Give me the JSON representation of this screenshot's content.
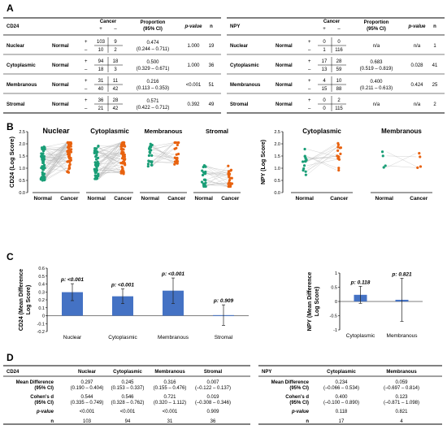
{
  "panel_letters": [
    "A",
    "B",
    "C",
    "D"
  ],
  "table_a": {
    "cd24": {
      "col_labels": {
        "marker": "CD24",
        "cancer": "Cancer",
        "plus": "+",
        "minus": "–",
        "proportion": "Proportion",
        "ci": "(95% CI)",
        "pvalue": "p-value",
        "n": "n"
      },
      "rows": [
        {
          "site": "Nuclear",
          "normal": "Normal",
          "p_a": "103",
          "p_b": "9",
          "m_a": "10",
          "m_b": "2",
          "prop": "0.474",
          "ci": "(0.244 – 0.711)",
          "pv": "1.000",
          "n": "19"
        },
        {
          "site": "Cytoplasmic",
          "normal": "Normal",
          "p_a": "94",
          "p_b": "18",
          "m_a": "18",
          "m_b": "3",
          "prop": "0.500",
          "ci": "(0.329 – 0.671)",
          "pv": "1.000",
          "n": "36"
        },
        {
          "site": "Membranous",
          "normal": "Normal",
          "p_a": "31",
          "p_b": "11",
          "m_a": "40",
          "m_b": "42",
          "prop": "0.216",
          "ci": "(0.113 – 0.353)",
          "pv": "<0.001",
          "n": "51"
        },
        {
          "site": "Stromal",
          "normal": "Normal",
          "p_a": "36",
          "p_b": "28",
          "m_a": "21",
          "m_b": "42",
          "prop": "0.571",
          "ci": "(0.422 – 0.712)",
          "pv": "0.392",
          "n": "49"
        }
      ]
    },
    "npy": {
      "col_labels": {
        "marker": "NPY",
        "cancer": "Cancer",
        "plus": "+",
        "minus": "–",
        "proportion": "Proportion",
        "ci": "(95% CI)",
        "pvalue": "p-value",
        "n": "n"
      },
      "rows": [
        {
          "site": "Nuclear",
          "normal": "Normal",
          "p_a": "0",
          "p_b": "0",
          "m_a": "1",
          "m_b": "116",
          "prop": "n/a",
          "ci": "",
          "pv": "n/a",
          "n": "1"
        },
        {
          "site": "Cytoplasmic",
          "normal": "Normal",
          "p_a": "17",
          "p_b": "28",
          "m_a": "13",
          "m_b": "59",
          "prop": "0.683",
          "ci": "(0.519 – 0.819)",
          "pv": "0.028",
          "n": "41"
        },
        {
          "site": "Membranous",
          "normal": "Normal",
          "p_a": "4",
          "p_b": "10",
          "m_a": "15",
          "m_b": "88",
          "prop": "0.400",
          "ci": "(0.211 – 0.613)",
          "pv": "0.424",
          "n": "25"
        },
        {
          "site": "Stromal",
          "normal": "Normal",
          "p_a": "0",
          "p_b": "2",
          "m_a": "0",
          "m_b": "115",
          "prop": "n/a",
          "ci": "",
          "pv": "n/a",
          "n": "2"
        }
      ]
    }
  },
  "panel_b": {
    "cd24_ylabel": "CD24 (Log Score)",
    "npy_ylabel": "NPY (Log Score)",
    "cd24_ticks": [
      "0.0",
      "0.5",
      "1.0",
      "1.5",
      "2.0",
      "2.5"
    ],
    "npy_ticks": [
      "0.0",
      "0.5",
      "1.0",
      "1.5",
      "2.0",
      "2.5"
    ],
    "xlabels": [
      "Normal",
      "Cancer"
    ],
    "cd24_titles": [
      "Nuclear",
      "Cytoplasmic",
      "Membranous",
      "Stromal"
    ],
    "npy_titles": [
      "Cytoplasmic",
      "Membranous"
    ],
    "colors": {
      "normal": "#1a9e77",
      "cancer": "#e8620f",
      "line": "#b8b8b8"
    }
  },
  "chart_data": [
    {
      "type": "bar",
      "categories": [
        "Nuclear",
        "Cytoplasmic",
        "Membranous",
        "Stromal"
      ],
      "values": [
        0.297,
        0.245,
        0.316,
        0.007
      ],
      "ci_low": [
        0.19,
        0.153,
        0.155,
        -0.122
      ],
      "ci_high": [
        0.404,
        0.337,
        0.476,
        0.137
      ],
      "p_labels": [
        "p: <0.001",
        "p: <0.001",
        "p: <0.001",
        "p: 0.909"
      ],
      "title": "",
      "xlabel": "",
      "ylabel": "CD24 (Mean Difference Log Score)",
      "ylabel_lines": [
        "CD24 (Mean Difference",
        "Log Score)"
      ],
      "ylim": [
        -0.2,
        0.6
      ],
      "yticks": [
        "0.6",
        "0.5",
        "0.4",
        "0.3",
        "0.2",
        "0.1",
        "0",
        "-0.1",
        "-0.2"
      ],
      "color": "#4472c4"
    },
    {
      "type": "bar",
      "categories": [
        "Cytoplasmic",
        "Membranous"
      ],
      "values": [
        0.234,
        0.059
      ],
      "ci_low": [
        -0.066,
        -0.697
      ],
      "ci_high": [
        0.534,
        0.814
      ],
      "p_labels": [
        "p: 0.118",
        "p: 0.821"
      ],
      "title": "",
      "xlabel": "",
      "ylabel": "NPY (Mean Difference Log Score)",
      "ylabel_lines": [
        "NPY (Mean Difference",
        "Log Score)"
      ],
      "ylim": [
        -1,
        1
      ],
      "yticks": [
        "1",
        "0.5",
        "0",
        "-0.5",
        "-1"
      ],
      "color": "#4472c4"
    }
  ],
  "table_d": {
    "cd24": {
      "header": [
        "CD24",
        "Nuclear",
        "Cytoplasmic",
        "Membranous",
        "Stromal"
      ],
      "rows": [
        {
          "label1": "Mean Difference",
          "label2": "(95% CI)",
          "vals": [
            "0.297",
            "0.245",
            "0.316",
            "0.007"
          ],
          "subs": [
            "(0.190 – 0.404)",
            "(0.153 – 0.337)",
            "(0.155 – 0.476)",
            "(–0.122 – 0.137)"
          ]
        },
        {
          "label1": "Cohen's d",
          "label2": "(95% CI)",
          "vals": [
            "0.544",
            "0.546",
            "0.721",
            "0.019"
          ],
          "subs": [
            "(0.335 – 0.749)",
            "(0.328 – 0.762)",
            "(0.320 – 1.112)",
            "(–0.308 – 0.346)"
          ]
        },
        {
          "label1": "p-value",
          "label2": "",
          "vals": [
            "<0.001",
            "<0.001",
            "<0.001",
            "0.909"
          ],
          "subs": [
            "",
            "",
            "",
            ""
          ]
        },
        {
          "label1": "n",
          "label2": "",
          "vals": [
            "103",
            "94",
            "31",
            "36"
          ],
          "subs": [
            "",
            "",
            "",
            ""
          ]
        }
      ]
    },
    "npy": {
      "header": [
        "NPY",
        "Cytoplasmic",
        "Membranous"
      ],
      "rows": [
        {
          "label1": "Mean Difference",
          "label2": "(95% CI)",
          "vals": [
            "0.234",
            "0.059"
          ],
          "subs": [
            "(–0.066 – 0.534)",
            "(–0.697 – 0.814)"
          ]
        },
        {
          "label1": "Cohen's d",
          "label2": "(95% CI)",
          "vals": [
            "0.400",
            "0.123"
          ],
          "subs": [
            "(–0.100 – 0.890)",
            "(–0.871 – 1.098)"
          ]
        },
        {
          "label1": "p-value",
          "label2": "",
          "vals": [
            "0.118",
            "0.821"
          ],
          "subs": [
            "",
            ""
          ]
        },
        {
          "label1": "n",
          "label2": "",
          "vals": [
            "17",
            "4"
          ],
          "subs": [
            "",
            ""
          ]
        }
      ]
    }
  }
}
